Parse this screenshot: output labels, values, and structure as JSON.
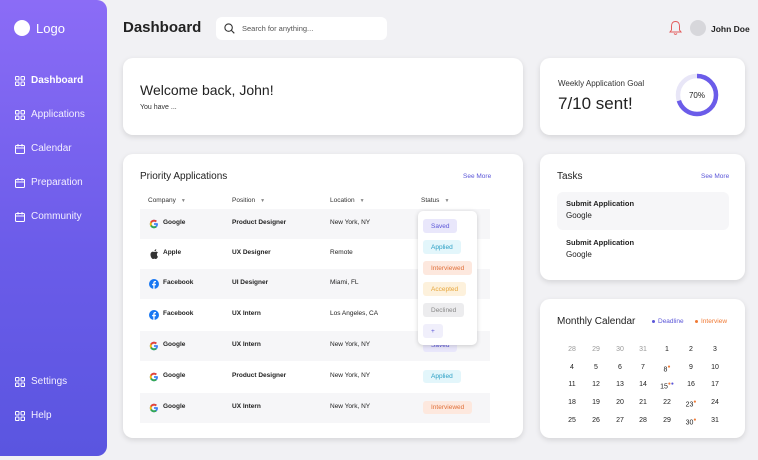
{
  "colors": {
    "accent": "#6b5ce9",
    "deadline": "#5b56d8",
    "interview": "#f07a35"
  },
  "sidebar": {
    "logo": "Logo",
    "nav": [
      {
        "label": "Dashboard",
        "icon": "grid-icon"
      },
      {
        "label": "Applications",
        "icon": "grid-icon"
      },
      {
        "label": "Calendar",
        "icon": "calendar-icon"
      },
      {
        "label": "Preparation",
        "icon": "calendar-icon"
      },
      {
        "label": "Community",
        "icon": "calendar-icon"
      }
    ],
    "bottom": [
      {
        "label": "Settings",
        "icon": "grid-icon"
      },
      {
        "label": "Help",
        "icon": "grid-icon"
      }
    ]
  },
  "header": {
    "title": "Dashboard",
    "search_placeholder": "Search for anything...",
    "user_name": "John Doe"
  },
  "welcome": {
    "title": "Welcome back, John!",
    "subtitle": "You have ..."
  },
  "goal": {
    "label": "Weekly Application Goal",
    "value": "7/10 sent!",
    "percent_label": "70%",
    "percent": 0.7
  },
  "priority": {
    "title": "Priority Applications",
    "see_more": "See More",
    "columns": [
      "Company",
      "Position",
      "Location",
      "Status"
    ],
    "rows": [
      {
        "company": "Google",
        "position": "Product Designer",
        "location": "New York, NY",
        "status": "Saved"
      },
      {
        "company": "Apple",
        "position": "UX Designer",
        "location": "Remote",
        "status": ""
      },
      {
        "company": "Facebook",
        "position": "UI Designer",
        "location": "Miami, FL",
        "status": ""
      },
      {
        "company": "Facebook",
        "position": "UX Intern",
        "location": "Los Angeles, CA",
        "status": ""
      },
      {
        "company": "Google",
        "position": "UX Intern",
        "location": "New York, NY",
        "status": "Saved"
      },
      {
        "company": "Google",
        "position": "Product Designer",
        "location": "New York, NY",
        "status": "Applied"
      },
      {
        "company": "Google",
        "position": "UX Intern",
        "location": "New York, NY",
        "status": "Interviewed"
      }
    ],
    "status_options": [
      "Saved",
      "Applied",
      "Interviewed",
      "Accepted",
      "Declined",
      "+"
    ]
  },
  "tasks": {
    "title": "Tasks",
    "see_more": "See More",
    "items": [
      {
        "title": "Submit Application",
        "company": "Google"
      },
      {
        "title": "Submit Application",
        "company": "Google"
      }
    ]
  },
  "calendar": {
    "title": "Monthly Calendar",
    "legend": [
      "Deadline",
      "Interview"
    ],
    "weeks": [
      [
        "28",
        "29",
        "30",
        "31",
        "1",
        "2",
        "3"
      ],
      [
        "4",
        "5",
        "6",
        "7",
        "8",
        "9",
        "10"
      ],
      [
        "11",
        "12",
        "13",
        "14",
        "15",
        "16",
        "17"
      ],
      [
        "18",
        "19",
        "20",
        "21",
        "22",
        "23",
        "24"
      ],
      [
        "25",
        "26",
        "27",
        "28",
        "29",
        "30",
        "31"
      ]
    ]
  }
}
